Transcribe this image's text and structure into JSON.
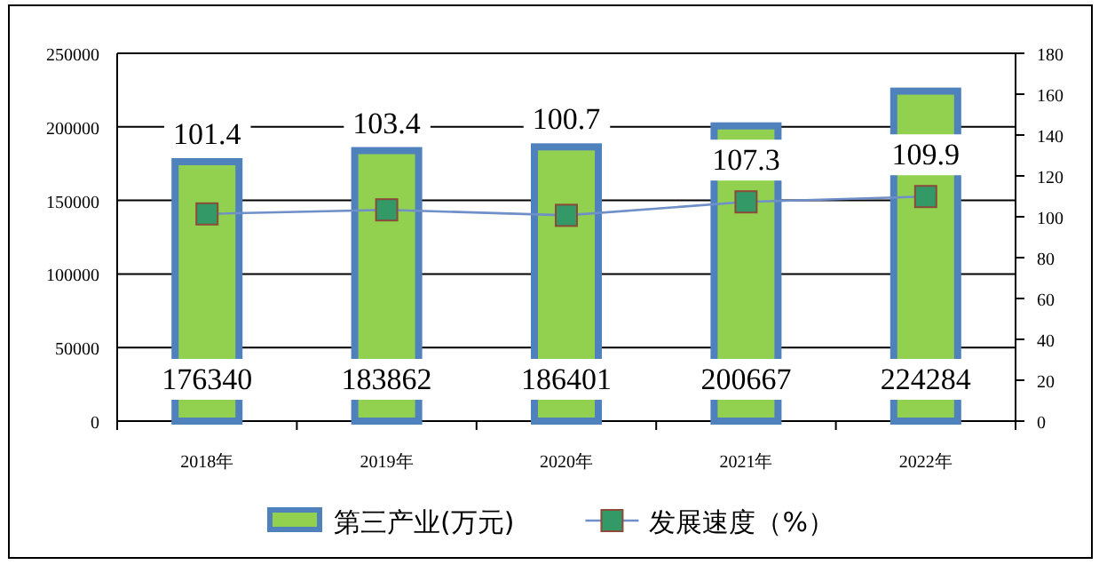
{
  "chart_data": {
    "type": "bar",
    "categories": [
      "2018年",
      "2019年",
      "2020年",
      "2021年",
      "2022年"
    ],
    "series": [
      {
        "name": "第三产业(万元)",
        "color": "#92d050",
        "values": [
          176340,
          183862,
          186401,
          200667,
          224284
        ]
      },
      {
        "name": "发展速度（%）",
        "type": "line",
        "axis": "y2",
        "color": "#339966",
        "marker": "square",
        "values": [
          101.4,
          103.4,
          100.7,
          107.3,
          109.9
        ]
      }
    ],
    "ylim": [
      0,
      250000
    ],
    "yticks": [
      0,
      50000,
      100000,
      150000,
      200000,
      250000
    ],
    "y2lim": [
      0,
      180
    ],
    "y2ticks": [
      0,
      20,
      40,
      60,
      80,
      100,
      120,
      140,
      160,
      180
    ],
    "grid": "y",
    "legend": "bottom",
    "data_labels": true
  }
}
